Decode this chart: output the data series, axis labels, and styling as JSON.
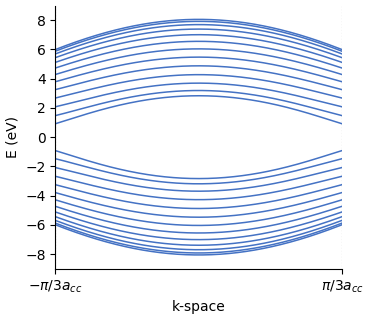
{
  "title": "",
  "xlabel": "k-space",
  "ylabel": "E (eV)",
  "ylim": [
    -9,
    9
  ],
  "yticks": [
    -8,
    -6,
    -4,
    -2,
    0,
    2,
    4,
    6,
    8
  ],
  "line_color": "#4472c4",
  "line_width": 1.1,
  "background_color": "#ffffff",
  "vline_color": "#777777",
  "n_k": 300,
  "N": 13,
  "t": 2.7,
  "acc": 1.42,
  "figsize": [
    3.69,
    3.2
  ],
  "dpi": 100
}
